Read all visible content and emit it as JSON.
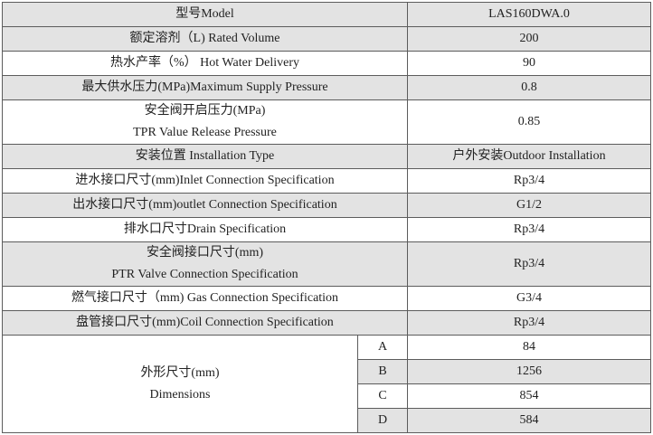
{
  "spec_table": {
    "header": {
      "label": "型号Model",
      "value": "LAS160DWA.0"
    },
    "rows": [
      {
        "label": "额定溶剂（L) Rated Volume",
        "value": "200"
      },
      {
        "label": "热水产率（%） Hot Water Delivery",
        "value": "90"
      },
      {
        "label": "最大供水压力(MPa)Maximum Supply Pressure",
        "value": "0.8"
      },
      {
        "label_line1": "安全阀开启压力(MPa)",
        "label_line2": "TPR Value Release Pressure",
        "value": "0.85"
      },
      {
        "label": "安装位置 Installation Type",
        "value": "户外安装Outdoor Installation"
      },
      {
        "label": "进水接口尺寸(mm)Inlet Connection Specification",
        "value": "Rp3/4"
      },
      {
        "label": "出水接口尺寸(mm)outlet Connection Specification",
        "value": "G1/2"
      },
      {
        "label": "排水口尺寸Drain Specification",
        "value": "Rp3/4"
      },
      {
        "label_line1": "安全阀接口尺寸(mm)",
        "label_line2": "PTR Valve Connection Specification",
        "value": "Rp3/4"
      },
      {
        "label": "燃气接口尺寸（mm) Gas Connection Specification",
        "value": "G3/4"
      },
      {
        "label": "盘管接口尺寸(mm)Coil Connection Specification",
        "value": "Rp3/4"
      }
    ],
    "dimensions": {
      "label_line1": "外形尺寸(mm)",
      "label_line2": "Dimensions",
      "items": [
        {
          "key": "A",
          "value": "84"
        },
        {
          "key": "B",
          "value": "1256"
        },
        {
          "key": "C",
          "value": "854"
        },
        {
          "key": "D",
          "value": "584"
        }
      ]
    }
  }
}
